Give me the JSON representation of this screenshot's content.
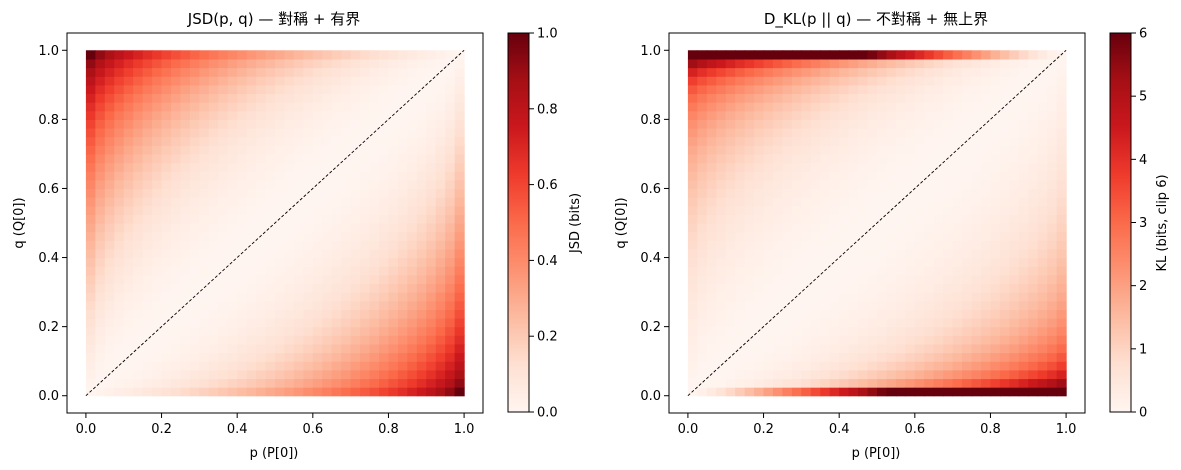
{
  "chart_data": [
    {
      "type": "heatmap",
      "title": "JSD(p, q) — 對稱 + 有界",
      "xlabel": "p (P[0])",
      "ylabel": "q (Q[0])",
      "xlim": [
        -0.05,
        1.05
      ],
      "ylim": [
        -0.05,
        1.05
      ],
      "xticks": [
        "0.0",
        "0.2",
        "0.4",
        "0.6",
        "0.8",
        "1.0"
      ],
      "yticks": [
        "0.0",
        "0.2",
        "0.4",
        "0.6",
        "0.8",
        "1.0"
      ],
      "x_range": [
        0,
        1
      ],
      "y_range": [
        0,
        1
      ],
      "grid_size": 40,
      "value_function": "JSD in bits between Bernoulli(p) and Bernoulli(q)",
      "diagonal": "dashed black line from (0,0) to (1,1)",
      "colormap": "Reds",
      "colorbar": {
        "label": "JSD (bits)",
        "range": [
          0,
          1
        ],
        "ticks": [
          "0.0",
          "0.2",
          "0.4",
          "0.6",
          "0.8",
          "1.0"
        ]
      },
      "grid": false
    },
    {
      "type": "heatmap",
      "title": "D_KL(p || q) — 不對稱 + 無上界",
      "xlabel": "p (P[0])",
      "ylabel": "q (Q[0])",
      "xlim": [
        -0.05,
        1.05
      ],
      "ylim": [
        -0.05,
        1.05
      ],
      "xticks": [
        "0.0",
        "0.2",
        "0.4",
        "0.6",
        "0.8",
        "1.0"
      ],
      "yticks": [
        "0.0",
        "0.2",
        "0.4",
        "0.6",
        "0.8",
        "1.0"
      ],
      "x_range": [
        0,
        1
      ],
      "y_range": [
        0,
        1
      ],
      "grid_size": 40,
      "value_function": "KL divergence in bits D(Bernoulli(p) || Bernoulli(q)), clipped at 6",
      "diagonal": "dashed black line from (0,0) to (1,1)",
      "colormap": "Reds",
      "colorbar": {
        "label": "KL (bits, clip 6)",
        "range": [
          0,
          6
        ],
        "ticks": [
          "0",
          "1",
          "2",
          "3",
          "4",
          "5",
          "6"
        ]
      },
      "grid": false
    }
  ]
}
